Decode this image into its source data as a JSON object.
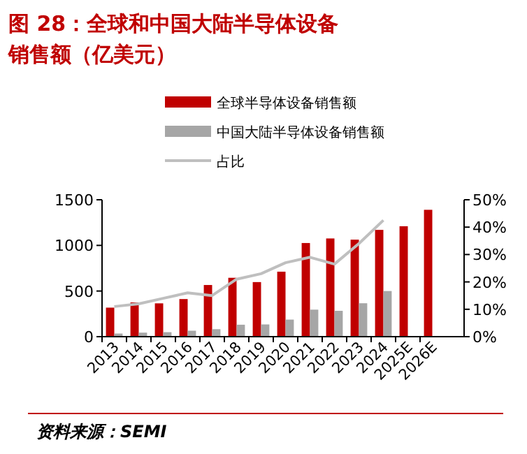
{
  "chart_data": {
    "type": "bar",
    "title": "图 28：全球和中国大陆半导体设备销售额（亿美元）",
    "categories": [
      "2013",
      "2014",
      "2015",
      "2016",
      "2017",
      "2018",
      "2019",
      "2020",
      "2021",
      "2022",
      "2023",
      "2024",
      "2025E",
      "2026E"
    ],
    "series": [
      {
        "name": "全球半导体设备销售额",
        "color": "#c00000",
        "values": [
          318,
          375,
          365,
          412,
          566,
          645,
          598,
          712,
          1026,
          1076,
          1063,
          1170,
          1210,
          1390
        ]
      },
      {
        "name": "中国大陆半导体设备销售额",
        "color": "#a6a6a6",
        "values": [
          34,
          44,
          49,
          65,
          82,
          131,
          134,
          187,
          296,
          283,
          366,
          500,
          null,
          null
        ]
      },
      {
        "name": "占比",
        "type": "line",
        "axis": "y2",
        "color": "#bfbfbf",
        "values": [
          11,
          12,
          14,
          16,
          15,
          21,
          23,
          27,
          29,
          26.5,
          34,
          42.5,
          null,
          null
        ]
      }
    ],
    "ylim": [
      0,
      1500
    ],
    "yticks": [
      0,
      500,
      1000,
      1500
    ],
    "y2lim": [
      0,
      50
    ],
    "y2ticks": [
      {
        "value": 0,
        "label": "0%"
      },
      {
        "value": 10,
        "label": "10%"
      },
      {
        "value": 20,
        "label": "20%"
      },
      {
        "value": 30,
        "label": "30%"
      },
      {
        "value": 40,
        "label": "40%"
      },
      {
        "value": 50,
        "label": "50%"
      }
    ],
    "legend": "top left",
    "grid": false,
    "marker": "none",
    "annotations": [
      "资料来源：SEMI"
    ]
  }
}
